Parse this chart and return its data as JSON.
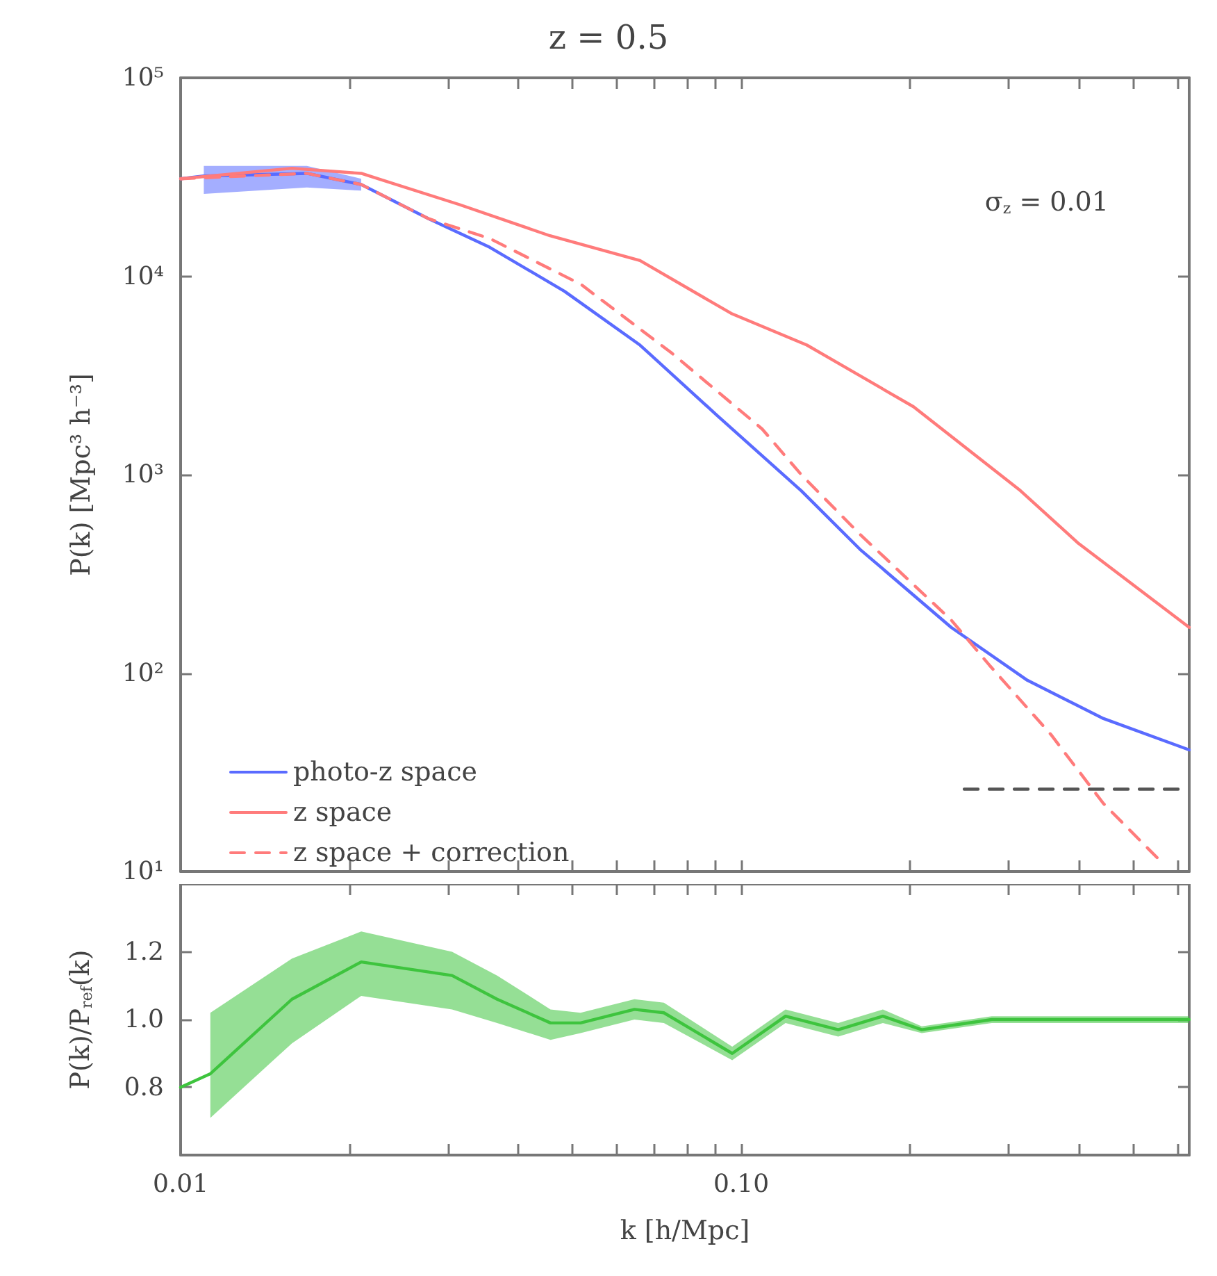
{
  "chart_data": [
    {
      "type": "line",
      "title": "z = 0.5",
      "ylabel": "P(k) [Mpc³ h⁻³]",
      "log": "xy",
      "xlim": [
        0.01,
        0.63
      ],
      "ylim": [
        10,
        100000
      ],
      "xticks": [
        {
          "value": 0.01,
          "label": null
        },
        {
          "value": 0.02,
          "label": null
        },
        {
          "value": 0.03,
          "label": null
        },
        {
          "value": 0.04,
          "label": null
        },
        {
          "value": 0.05,
          "label": null
        },
        {
          "value": 0.06,
          "label": null
        },
        {
          "value": 0.07,
          "label": null
        },
        {
          "value": 0.08,
          "label": null
        },
        {
          "value": 0.09,
          "label": null
        },
        {
          "value": 0.1,
          "label": null
        },
        {
          "value": 0.2,
          "label": null
        },
        {
          "value": 0.3,
          "label": null
        },
        {
          "value": 0.4,
          "label": null
        },
        {
          "value": 0.5,
          "label": null
        },
        {
          "value": 0.6,
          "label": null
        }
      ],
      "yticks": [
        {
          "value": 10,
          "label": "10¹"
        },
        {
          "value": 100,
          "label": "10²"
        },
        {
          "value": 1000,
          "label": "10³"
        },
        {
          "value": 10000,
          "label": "10⁴"
        },
        {
          "value": 100000,
          "label": "10⁵"
        }
      ],
      "tick_labels": "y",
      "legend": "bottom left",
      "marker": "none",
      "annotations": [
        "σ$_{z}$ = 0.01"
      ],
      "series": [
        {
          "name": "photo-z space",
          "color": "#5a6bff",
          "x": [
            0.01,
            0.011,
            0.0168,
            0.021,
            0.0277,
            0.0356,
            0.0484,
            0.066,
            0.0904,
            0.128,
            0.163,
            0.237,
            0.324,
            0.443,
            0.63
          ],
          "values": [
            31000,
            32000,
            33000,
            29000,
            19500,
            14000,
            8400,
            4500,
            2000,
            830,
            420,
            170,
            92,
            59,
            41
          ],
          "lower": [
            null,
            26000,
            28000,
            27000,
            null,
            null,
            null,
            null,
            null,
            null,
            null,
            null,
            null,
            null,
            null
          ],
          "upper": [
            null,
            36000,
            36000,
            31000,
            null,
            null,
            null,
            null,
            null,
            null,
            null,
            null,
            null,
            null,
            null
          ]
        },
        {
          "name": "z space",
          "color": "#ff7b7b",
          "x": [
            0.01,
            0.0158,
            0.021,
            0.0314,
            0.0456,
            0.066,
            0.096,
            0.131,
            0.203,
            0.315,
            0.4,
            0.63
          ],
          "values": [
            31000,
            35000,
            33000,
            23000,
            16000,
            12000,
            6500,
            4500,
            2200,
            830,
            450,
            170
          ]
        },
        {
          "name": "z space + correction",
          "color": "#ff7b7b",
          "line_style": "dashed",
          "x": [
            0.01,
            0.0168,
            0.021,
            0.0277,
            0.0356,
            0.0518,
            0.0752,
            0.109,
            0.128,
            0.163,
            0.237,
            0.277,
            0.357,
            0.443,
            0.565
          ],
          "values": [
            31000,
            33000,
            29000,
            19500,
            15500,
            9100,
            4100,
            1700,
            1000,
            500,
            185,
            110,
            49,
            22,
            11
          ]
        },
        {
          "color": "#555555",
          "line_style": "dashed",
          "x": [
            0.25,
            0.63
          ],
          "values": [
            26,
            26
          ]
        }
      ]
    },
    {
      "type": "line",
      "xlabel": "k [h/Mpc]",
      "ylabel": "P(k)/P$_{ref}$(k)",
      "log": "x",
      "xlim": [
        0.01,
        0.63
      ],
      "ylim": [
        0.6,
        1.4
      ],
      "xticks": [
        {
          "value": 0.01,
          "label": "0.01"
        },
        {
          "value": 0.02,
          "label": null
        },
        {
          "value": 0.03,
          "label": null
        },
        {
          "value": 0.04,
          "label": null
        },
        {
          "value": 0.05,
          "label": null
        },
        {
          "value": 0.06,
          "label": null
        },
        {
          "value": 0.07,
          "label": null
        },
        {
          "value": 0.08,
          "label": null
        },
        {
          "value": 0.09,
          "label": null
        },
        {
          "value": 0.1,
          "label": "0.10"
        },
        {
          "value": 0.2,
          "label": null
        },
        {
          "value": 0.3,
          "label": null
        },
        {
          "value": 0.4,
          "label": null
        },
        {
          "value": 0.5,
          "label": null
        },
        {
          "value": 0.6,
          "label": null
        }
      ],
      "yticks": [
        {
          "value": 0.8,
          "label": "0.8"
        },
        {
          "value": 1,
          "label": "1.0"
        },
        {
          "value": 1.2,
          "label": "1.2"
        }
      ],
      "marker": "none",
      "series": [
        {
          "color": "#3ec43e",
          "x": [
            0.01,
            0.0113,
            0.0158,
            0.021,
            0.0305,
            0.0367,
            0.0457,
            0.0517,
            0.0645,
            0.0728,
            0.0964,
            0.12,
            0.149,
            0.179,
            0.21,
            0.28,
            0.63
          ],
          "values": [
            0.8,
            0.84,
            1.06,
            1.17,
            1.13,
            1.06,
            0.99,
            0.99,
            1.03,
            1.02,
            0.9,
            1.01,
            0.97,
            1.01,
            0.97,
            1.0,
            1.0
          ],
          "lower": [
            null,
            0.71,
            0.93,
            1.07,
            1.03,
            0.99,
            0.94,
            0.96,
            1.0,
            0.99,
            0.88,
            0.99,
            0.95,
            0.99,
            0.96,
            0.99,
            0.99
          ],
          "upper": [
            null,
            1.02,
            1.18,
            1.26,
            1.2,
            1.13,
            1.03,
            1.02,
            1.06,
            1.05,
            0.92,
            1.03,
            0.99,
            1.03,
            0.98,
            1.01,
            1.01
          ]
        }
      ]
    }
  ]
}
